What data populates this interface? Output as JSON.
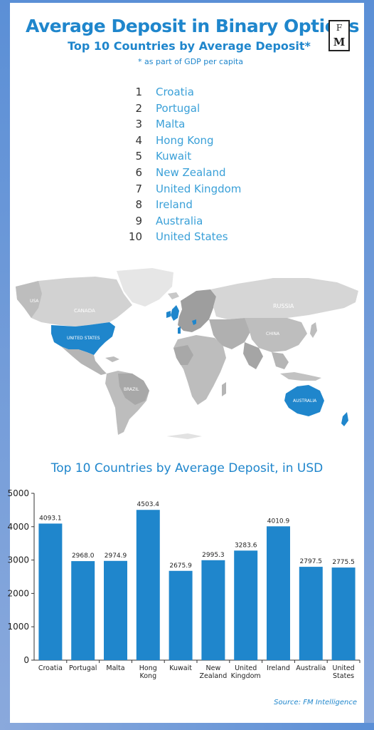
{
  "header": {
    "title": "Average Deposit in Binary Options",
    "subtitle": "Top 10 Countries by Average Deposit*",
    "note": "* as part of  GDP per capita",
    "logo": {
      "line1": "F",
      "line2": "M"
    }
  },
  "ranking": [
    {
      "rank": "1",
      "country": "Croatia"
    },
    {
      "rank": "2",
      "country": "Portugal"
    },
    {
      "rank": "3",
      "country": "Malta"
    },
    {
      "rank": "4",
      "country": "Hong Kong"
    },
    {
      "rank": "5",
      "country": "Kuwait"
    },
    {
      "rank": "6",
      "country": "New Zealand"
    },
    {
      "rank": "7",
      "country": "United Kingdom"
    },
    {
      "rank": "8",
      "country": "Ireland"
    },
    {
      "rank": "9",
      "country": "Australia"
    },
    {
      "rank": "10",
      "country": "United States"
    }
  ],
  "map": {
    "labels": {
      "canada": "CANADA",
      "usa": "UNITED STATES",
      "russia": "RUSSIA",
      "brazil": "BRAZIL",
      "australia": "AUSTRALIA",
      "china": "CHINA",
      "usa_abbr": "USA"
    },
    "highlight_color": "#1f86cc",
    "land_color": "#c8c8c8"
  },
  "chart_data": {
    "type": "bar",
    "title": "Top 10 Countries by Average Deposit, in USD",
    "categories": [
      [
        "Croatia"
      ],
      [
        "Portugal"
      ],
      [
        "Malta"
      ],
      [
        "Hong",
        "Kong"
      ],
      [
        "Kuwait"
      ],
      [
        "New",
        "Zealand"
      ],
      [
        "United",
        "Kingdom"
      ],
      [
        "Ireland"
      ],
      [
        "Australia"
      ],
      [
        "United",
        "States"
      ]
    ],
    "values": [
      4093.1,
      2968.0,
      2974.9,
      4503.4,
      2675.9,
      2995.3,
      3283.6,
      4010.9,
      2797.5,
      2775.5
    ],
    "value_labels": [
      "4093.1",
      "2968.0",
      "2974.9",
      "4503.4",
      "2675.9",
      "2995.3",
      "3283.6",
      "4010.9",
      "2797.5",
      "2775.5"
    ],
    "ylim": [
      0,
      5000
    ],
    "yticks": [
      "0",
      "1000",
      "2000",
      "3000",
      "4000",
      "5000"
    ],
    "bar_color": "#1f86cc",
    "grid": false,
    "legend": "none"
  },
  "footer": {
    "source": "Source:  FM Intelligence"
  }
}
